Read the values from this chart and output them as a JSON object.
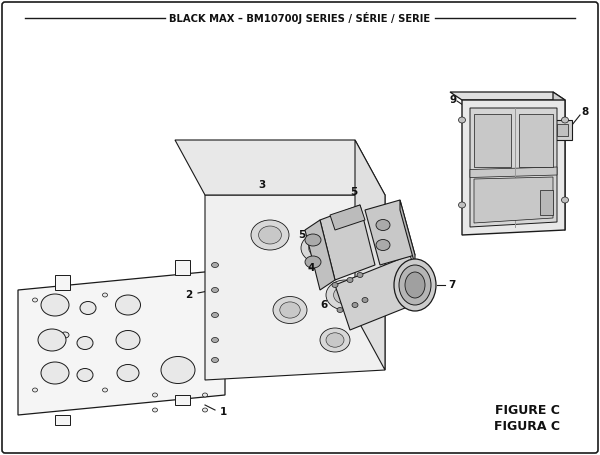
{
  "title": "BLACK MAX – BM10700J SERIES / SÉRIE / SERIE",
  "figure_label": "FIGURE C",
  "figura_label": "FIGURA C",
  "bg_color": "#ffffff",
  "line_color": "#1a1a1a",
  "text_color": "#111111",
  "figsize": [
    6.0,
    4.55
  ],
  "dpi": 100,
  "title_fontsize": 7.2,
  "label_fontsize": 7.5
}
